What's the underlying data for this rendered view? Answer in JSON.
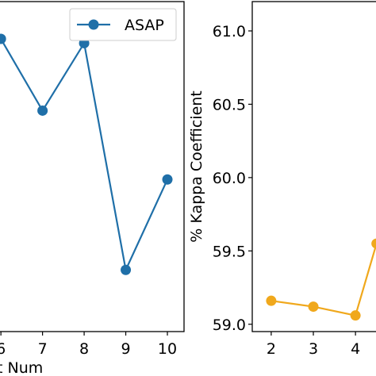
{
  "chart_data": [
    {
      "type": "line",
      "xlabel_visible": "t Num",
      "ylabel": "",
      "xlim": [
        5.94,
        10.4
      ],
      "ylim": [
        58.9,
        61.2
      ],
      "x": [
        6,
        7,
        8,
        9,
        10
      ],
      "x_tick_labels": [
        "6",
        "7",
        "8",
        "9",
        "10"
      ],
      "y_tick_labels": [],
      "series": [
        {
          "name": "ASAP",
          "color": "#1f6fa8",
          "values": [
            60.94,
            60.44,
            60.91,
            59.33,
            59.96
          ]
        }
      ],
      "legend": {
        "placement": "top-right",
        "label": "ASAP"
      },
      "grid": false
    },
    {
      "type": "line",
      "xlabel": "",
      "ylabel": "% Kappa Coefficient",
      "xlim": [
        1.55,
        4.6
      ],
      "ylim": [
        58.95,
        61.2
      ],
      "x": [
        2,
        3,
        4,
        4.5
      ],
      "x_tick_labels": [
        "2",
        "3",
        "4"
      ],
      "y_ticks": [
        59.0,
        59.5,
        60.0,
        60.5,
        61.0
      ],
      "y_tick_labels": [
        "59.0",
        "59.5",
        "60.0",
        "60.5",
        "61.0"
      ],
      "series": [
        {
          "color": "#f0a81c",
          "values": [
            59.16,
            59.12,
            59.06,
            59.55
          ]
        }
      ],
      "grid": false
    }
  ]
}
